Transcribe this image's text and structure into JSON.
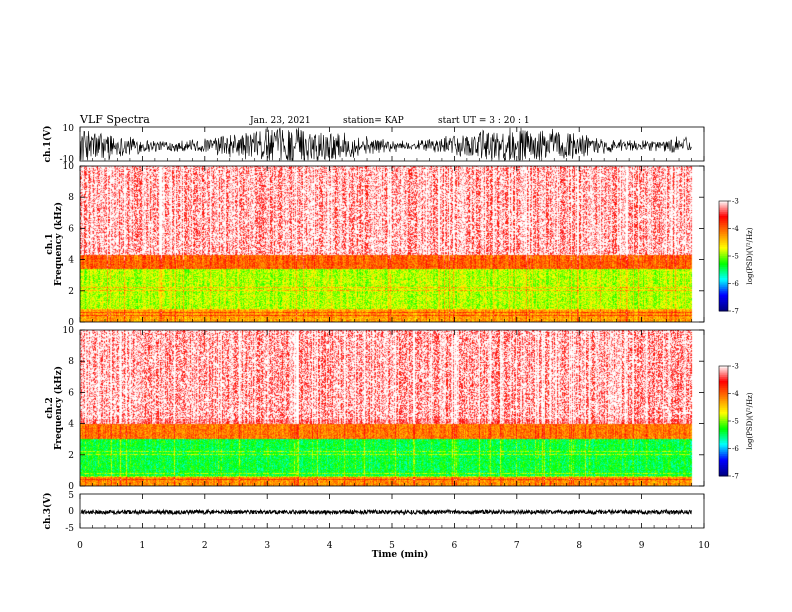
{
  "header": {
    "title": "VLF Spectra",
    "date": "Jan. 23, 2021",
    "station": "station= KAP",
    "start": "start  UT  =   3  : 20 : 1"
  },
  "chart_data": [
    {
      "type": "line",
      "panel": "ch1-waveform",
      "ylabel": "ch.1(V)",
      "ylim": [
        -10,
        10
      ],
      "yticks": [
        "10",
        "-10"
      ],
      "xlim": [
        0,
        10
      ],
      "series": [
        {
          "values_description": "",
          "mean": -1,
          "amplitude": 8
        }
      ]
    },
    {
      "type": "heatmap",
      "panel": "ch1-spectrogram",
      "ylabel": "Frequency (kHz)",
      "ylabel_top": "ch.1",
      "ylim": [
        0,
        10
      ],
      "yticks": [
        "0",
        "2",
        "4",
        "6",
        "8",
        "10"
      ],
      "xlim": [
        0,
        10
      ],
      "data_end_min": 9.8,
      "bands_kHz": [
        {
          "from": 0,
          "to": 0.8,
          "logPSD": -4.3
        },
        {
          "from": 0.8,
          "to": 3.4,
          "logPSD": -4.9
        },
        {
          "from": 3.4,
          "to": 4.3,
          "logPSD": -4.0
        },
        {
          "from": 4.3,
          "to": 10,
          "logPSD": -3.3
        }
      ],
      "colorbar": {
        "label": "log(PSD)(V²/Hz)",
        "ticks": [
          "-3",
          "-4",
          "-5",
          "-6",
          "-7"
        ],
        "range": [
          -7,
          -3
        ]
      }
    },
    {
      "type": "heatmap",
      "panel": "ch2-spectrogram",
      "ylabel": "Frequency (kHz)",
      "ylabel_top": "ch.2",
      "ylim": [
        0,
        10
      ],
      "yticks": [
        "0",
        "2",
        "4",
        "6",
        "8",
        "10"
      ],
      "xlim": [
        0,
        10
      ],
      "data_end_min": 9.8,
      "bands_kHz": [
        {
          "from": 0,
          "to": 0.6,
          "logPSD": -4.2
        },
        {
          "from": 0.6,
          "to": 3.0,
          "logPSD": -5.4
        },
        {
          "from": 3.0,
          "to": 4.0,
          "logPSD": -4.1
        },
        {
          "from": 4.0,
          "to": 10,
          "logPSD": -3.3
        }
      ],
      "colorbar": {
        "label": "log(PSD)(V²/Hz)",
        "ticks": [
          "-3",
          "-4",
          "-5",
          "-6",
          "-7"
        ],
        "range": [
          -7,
          -3
        ]
      }
    },
    {
      "type": "line",
      "panel": "ch3-waveform",
      "ylabel": "ch.3(V)",
      "ylim": [
        -5,
        5
      ],
      "yticks": [
        "5",
        "0",
        "-5"
      ],
      "xlim": [
        0,
        10
      ],
      "series": [
        {
          "mean": -0.3,
          "amplitude": 0.6
        }
      ]
    }
  ],
  "xaxis": {
    "label": "Time (min)",
    "ticks": [
      "0",
      "1",
      "2",
      "3",
      "4",
      "5",
      "6",
      "7",
      "8",
      "9",
      "10"
    ]
  },
  "colors": {
    "colormap": [
      "#000080",
      "#0000ff",
      "#00ffff",
      "#00ff00",
      "#ffff00",
      "#ff8000",
      "#ff0000",
      "#ffffff"
    ],
    "waveform": "#000000"
  }
}
